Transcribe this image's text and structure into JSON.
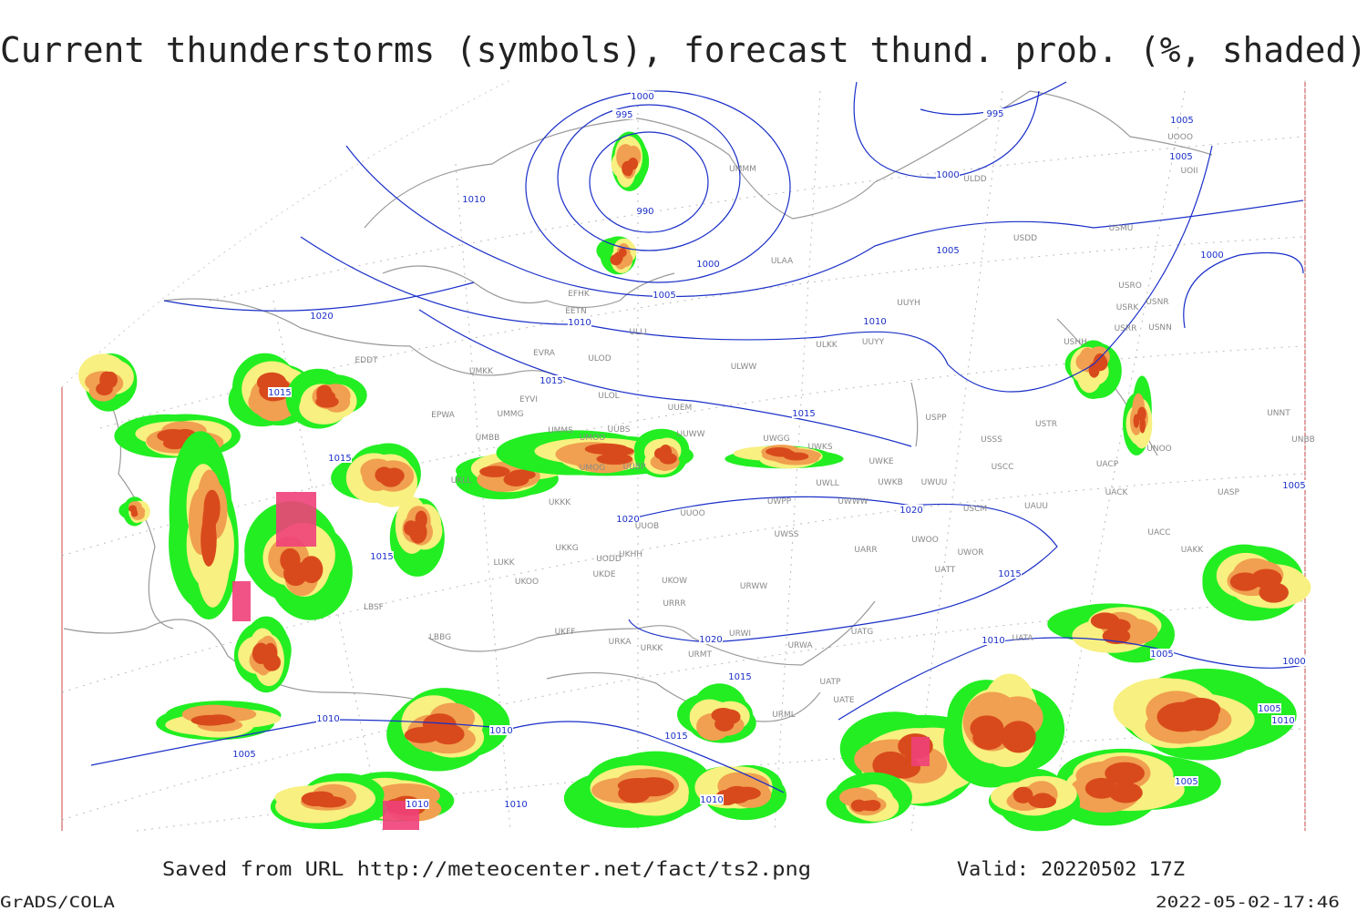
{
  "header": {
    "title": "Current thunderstorms (symbols), forecast thund. prob. (%, shaded)"
  },
  "isobar_labels": [
    "1000",
    "995",
    "995",
    "1005",
    "1005",
    "1010",
    "990",
    "1000",
    "1005",
    "1000",
    "1005",
    "1000",
    "1020",
    "1010",
    "1010",
    "1015",
    "1015",
    "1015",
    "1015",
    "1020",
    "1020",
    "1015",
    "1015",
    "1005",
    "1020",
    "1015",
    "1010",
    "1005",
    "1010",
    "1010",
    "1015",
    "1005",
    "1010",
    "1010",
    "1010",
    "1005",
    "1010",
    "1005",
    "1000"
  ],
  "stations": [
    "ULDD",
    "USDD",
    "USMU",
    "UOOO",
    "UOII",
    "ULAA",
    "UUYH",
    "USRO",
    "USRK",
    "USNR",
    "USRR",
    "USNN",
    "USHH",
    "ULKK",
    "UUYY",
    "ULWW",
    "USPP",
    "USTR",
    "USSS",
    "UNOO",
    "UNNT",
    "UNBB",
    "UACP",
    "USCC",
    "UACK",
    "UASP",
    "UAUU",
    "USCM",
    "UWOO",
    "UWOR",
    "UACC",
    "UAKK",
    "UATT",
    "UARR",
    "UWWW",
    "UWPP",
    "UWKE",
    "UWKS",
    "UWGG",
    "UWLL",
    "UWKB",
    "UWUU",
    "UWSS",
    "URWW",
    "URWA",
    "UATG",
    "UATA",
    "UATP",
    "UATE",
    "URML",
    "URWI",
    "URRR",
    "UKOW",
    "URMT",
    "URKK",
    "URKA",
    "UKFF",
    "LUKK",
    "UKOO",
    "UKDE",
    "UKHH",
    "UODD",
    "UKKG",
    "UKKK",
    "UUOB",
    "UUOO",
    "UMMS",
    "UUBS",
    "UMOO",
    "UMOG",
    "UUBP",
    "UUWW",
    "UUEM",
    "ULOL",
    "ULLI",
    "EETN",
    "EFHK",
    "ULOD",
    "EVRA",
    "EYVI",
    "UMKK",
    "UMMG",
    "EPWA",
    "UMBB",
    "UKLL",
    "EDDT",
    "LBSF",
    "LBBG",
    "UMMM"
  ],
  "footer": {
    "source": "Saved from URL http://meteocenter.net/fact/ts2.png",
    "valid": "Valid: 20220502 17Z",
    "software": "GrADS/COLA",
    "timestamp": "2022-05-02-17:46"
  }
}
